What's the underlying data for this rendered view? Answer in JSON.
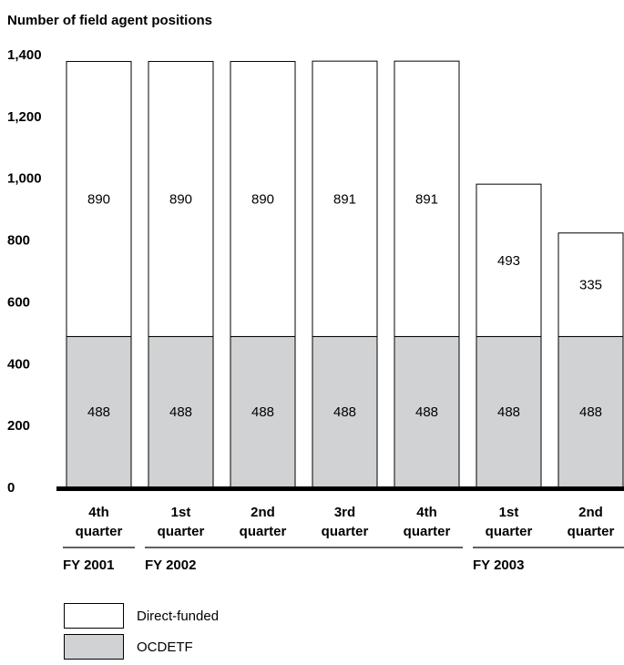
{
  "chart_data": {
    "type": "bar",
    "stacked": true,
    "ylabel": "Number of field agent positions",
    "ylim": [
      0,
      1400
    ],
    "yticks": [
      0,
      200,
      400,
      600,
      800,
      1000,
      1200,
      1400
    ],
    "ytick_labels": [
      "0",
      "200",
      "400",
      "600",
      "800",
      "1,000",
      "1,200",
      "1,400"
    ],
    "categories": [
      [
        "4th",
        "quarter"
      ],
      [
        "1st",
        "quarter"
      ],
      [
        "2nd",
        "quarter"
      ],
      [
        "3rd",
        "quarter"
      ],
      [
        "4th",
        "quarter"
      ],
      [
        "1st",
        "quarter"
      ],
      [
        "2nd",
        "quarter"
      ]
    ],
    "fiscal_years": [
      {
        "label": "FY 2001",
        "start": 0,
        "end": 0
      },
      {
        "label": "FY 2002",
        "start": 1,
        "end": 4
      },
      {
        "label": "FY 2003",
        "start": 5,
        "end": 6
      }
    ],
    "series": [
      {
        "name": "OCDETF",
        "color": "#d1d2d4",
        "values": [
          488,
          488,
          488,
          488,
          488,
          488,
          488
        ]
      },
      {
        "name": "Direct-funded",
        "color": "#ffffff",
        "values": [
          890,
          890,
          890,
          891,
          891,
          493,
          335
        ]
      }
    ],
    "grid": false,
    "legend_position": "bottom-left"
  }
}
